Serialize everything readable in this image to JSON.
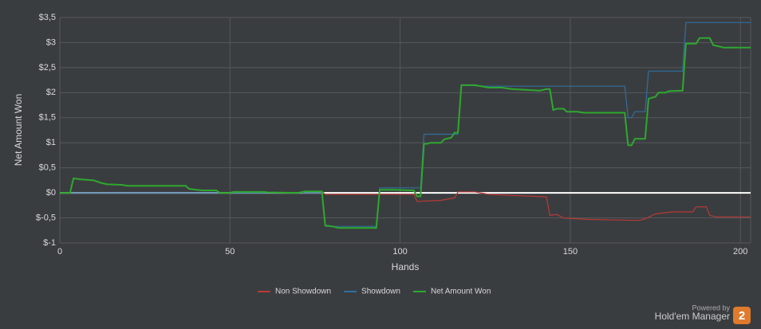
{
  "chart_data": {
    "type": "line",
    "x_label": "Hands",
    "y_label": "Net Amount Won",
    "xlim": [
      0,
      203
    ],
    "xticks": [
      0,
      50,
      100,
      150,
      200
    ],
    "ylim": [
      -1,
      3.5
    ],
    "yticks": [
      {
        "value": 3.5,
        "label": "$3,5"
      },
      {
        "value": 3,
        "label": "$3"
      },
      {
        "value": 2.5,
        "label": "$2,5"
      },
      {
        "value": 2,
        "label": "$2"
      },
      {
        "value": 1.5,
        "label": "$1,5"
      },
      {
        "value": 1,
        "label": "$1"
      },
      {
        "value": 0.5,
        "label": "$0,5"
      },
      {
        "value": 0,
        "label": "$0"
      },
      {
        "value": -0.5,
        "label": "$-0,5"
      },
      {
        "value": -1,
        "label": "$-1"
      }
    ],
    "grid": true,
    "legend": "bottom",
    "series": [
      {
        "name": "Non Showdown",
        "color": "#b83a35",
        "x": [
          0,
          3,
          4,
          6,
          10,
          12,
          14,
          18,
          20,
          37,
          38,
          40,
          42,
          46,
          47,
          50,
          51,
          60,
          61,
          70,
          72,
          77,
          78,
          104,
          105,
          112,
          116,
          117,
          122,
          126,
          143,
          144,
          146,
          148,
          155,
          170,
          172,
          175,
          180,
          186,
          187,
          190,
          191,
          193,
          203
        ],
        "values": [
          0,
          0,
          0.29,
          0.27,
          0.25,
          0.2,
          0.17,
          0.16,
          0.14,
          0.14,
          0.08,
          0.06,
          0.05,
          0.05,
          0,
          0,
          0.02,
          0.02,
          0.01,
          0,
          0.03,
          0.03,
          -0.03,
          -0.03,
          -0.17,
          -0.15,
          -0.1,
          0.02,
          0.02,
          -0.03,
          -0.08,
          -0.45,
          -0.43,
          -0.5,
          -0.53,
          -0.55,
          -0.52,
          -0.42,
          -0.38,
          -0.38,
          -0.28,
          -0.28,
          -0.45,
          -0.48,
          -0.48
        ]
      },
      {
        "name": "Showdown",
        "color": "#2f6f9e",
        "x": [
          0,
          77,
          78,
          93,
          94,
          106,
          107,
          117,
          118,
          125,
          166,
          167,
          168,
          169,
          172,
          173,
          183,
          184,
          203
        ],
        "values": [
          0,
          0,
          -0.67,
          -0.67,
          0.1,
          0.1,
          1.17,
          1.17,
          2.15,
          2.13,
          2.13,
          1.5,
          1.5,
          1.62,
          1.62,
          2.43,
          2.43,
          3.4,
          3.4
        ]
      },
      {
        "name": "Net Amount Won",
        "color": "#2ea82e",
        "x": [
          0,
          3,
          4,
          6,
          10,
          12,
          14,
          18,
          20,
          37,
          38,
          40,
          42,
          46,
          47,
          50,
          51,
          60,
          61,
          70,
          72,
          77,
          78,
          80,
          82,
          93,
          94,
          98,
          104,
          105,
          106,
          107,
          108,
          109,
          112,
          113,
          115,
          116,
          117,
          118,
          122,
          126,
          130,
          133,
          139,
          141,
          143,
          144,
          145,
          146,
          148,
          149,
          152,
          154,
          166,
          167,
          168,
          169,
          172,
          173,
          175,
          176,
          178,
          179,
          183,
          184,
          187,
          188,
          191,
          192,
          194,
          195,
          203
        ],
        "values": [
          0,
          0,
          0.29,
          0.27,
          0.25,
          0.2,
          0.17,
          0.16,
          0.14,
          0.14,
          0.08,
          0.06,
          0.05,
          0.05,
          0,
          0,
          0.02,
          0.02,
          0.01,
          0,
          0.03,
          0.03,
          -0.65,
          -0.67,
          -0.7,
          -0.7,
          0.06,
          0.06,
          0.05,
          -0.07,
          -0.07,
          0.98,
          0.98,
          1.0,
          1.0,
          1.07,
          1.1,
          1.2,
          1.2,
          2.15,
          2.15,
          2.1,
          2.1,
          2.07,
          2.05,
          2.04,
          2.07,
          2.07,
          1.65,
          1.68,
          1.68,
          1.62,
          1.62,
          1.6,
          1.6,
          0.95,
          0.95,
          1.08,
          1.08,
          1.88,
          1.92,
          2.0,
          2.0,
          2.03,
          2.04,
          2.98,
          2.98,
          3.09,
          3.09,
          2.95,
          2.92,
          2.9,
          2.9
        ]
      }
    ]
  },
  "branding": {
    "powered_by": "Powered by",
    "product": "Hold'em Manager",
    "badge": "2"
  }
}
